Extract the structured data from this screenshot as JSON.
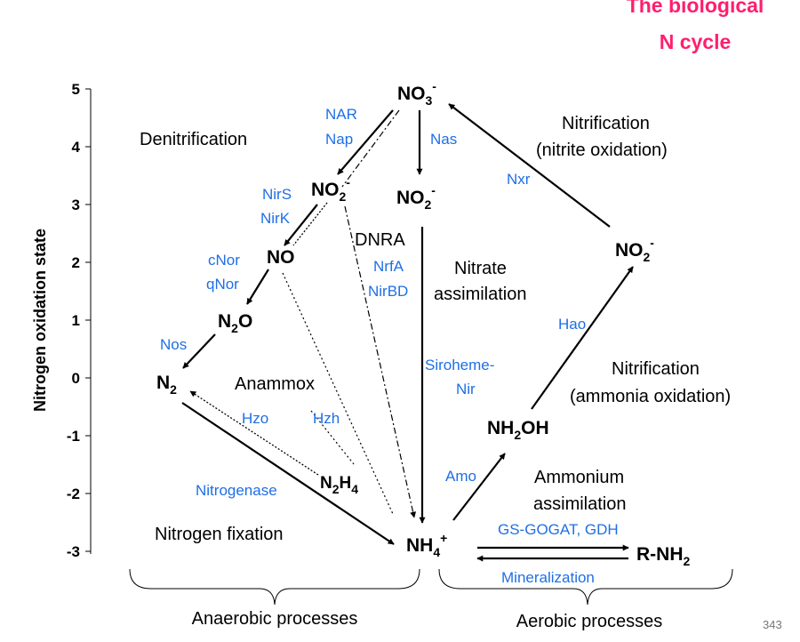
{
  "title": {
    "line1": "The biological",
    "line2": "N cycle"
  },
  "axis": {
    "label": "Nitrogen oxidation state",
    "ticks": [
      "5",
      "4",
      "3",
      "2",
      "1",
      "0",
      "-1",
      "-2",
      "-3"
    ]
  },
  "species": {
    "no3": {
      "base": "NO",
      "sub": "3",
      "sup": "-"
    },
    "no2_denit": {
      "base": "NO",
      "sub": "2",
      "sup": "-"
    },
    "no2_assim": {
      "base": "NO",
      "sub": "2",
      "sup": "-"
    },
    "no2_nitrif": {
      "base": "NO",
      "sub": "2",
      "sup": "-"
    },
    "no": {
      "base": "NO"
    },
    "n2o": {
      "base1": "N",
      "sub": "2",
      "base2": "O"
    },
    "n2": {
      "base": "N",
      "sub": "2"
    },
    "n2h4": {
      "base1": "N",
      "sub1": "2",
      "base2": "H",
      "sub2": "4"
    },
    "nh4": {
      "base": "NH",
      "sub": "4",
      "sup": "+"
    },
    "nh2oh": {
      "base1": "NH",
      "sub": "2",
      "base2": "OH"
    },
    "rnh2": {
      "base": "R-NH",
      "sub": "2"
    }
  },
  "enzymes": {
    "nar": "NAR",
    "nap": "Nap",
    "nas": "Nas",
    "nirs": "NirS",
    "nirk": "NirK",
    "cnor": "cNor",
    "qnor": "qNor",
    "nos": "Nos",
    "nrfa": "NrfA",
    "nirbd": "NirBD",
    "siroheme1": "Siroheme-",
    "siroheme2": "Nir",
    "hzo": "Hzo",
    "hzh": "Hzh",
    "nitrogenase": "Nitrogenase",
    "nxr": "Nxr",
    "hao": "Hao",
    "amo": "Amo",
    "gsgogat": "GS-GOGAT, GDH",
    "mineralization": "Mineralization"
  },
  "processes": {
    "denitrification": "Denitrification",
    "dnra": "DNRA",
    "nitrate_assim1": "Nitrate",
    "nitrate_assim2": "assimilation",
    "anammox": "Anammox",
    "nitrogen_fixation": "Nitrogen fixation",
    "nitrif_nitrite1": "Nitrification",
    "nitrif_nitrite2": "(nitrite oxidation)",
    "nitrif_ammonia1": "Nitrification",
    "nitrif_ammonia2": "(ammonia oxidation)",
    "ammonium_assim1": "Ammonium",
    "ammonium_assim2": "assimilation"
  },
  "groups": {
    "anaerobic": "Anaerobic processes",
    "aerobic": "Aerobic processes"
  },
  "slide_number": "343"
}
